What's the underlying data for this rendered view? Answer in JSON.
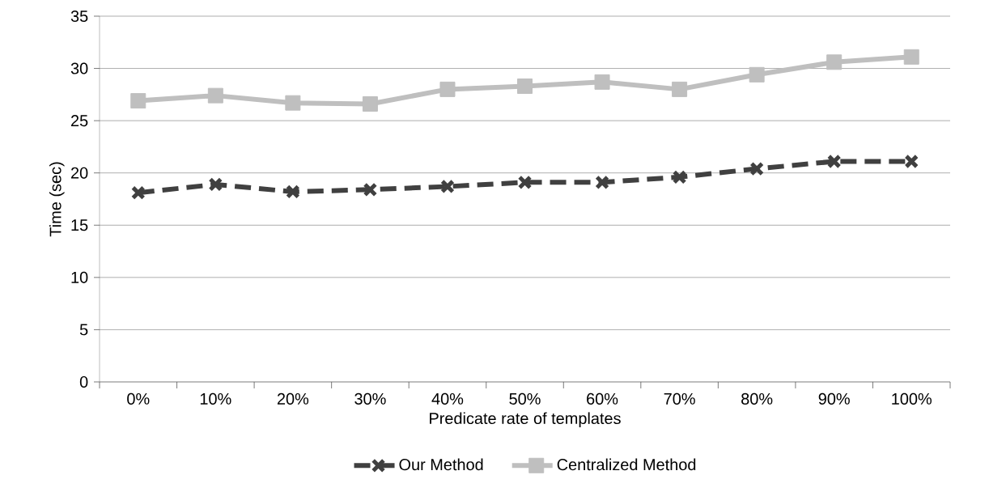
{
  "chart_data": {
    "type": "line",
    "xlabel": "Predicate rate of templates",
    "ylabel": "Time (sec)",
    "categories": [
      "0%",
      "10%",
      "20%",
      "30%",
      "40%",
      "50%",
      "60%",
      "70%",
      "80%",
      "90%",
      "100%"
    ],
    "series": [
      {
        "name": "Our Method",
        "color": "#404040",
        "marker": "cross",
        "line_style": "dashed",
        "values": [
          18.1,
          18.9,
          18.2,
          18.4,
          18.7,
          19.1,
          19.1,
          19.6,
          20.4,
          21.1,
          21.1
        ]
      },
      {
        "name": "Centralized Method",
        "color": "#bfbfbf",
        "marker": "square",
        "line_style": "solid",
        "values": [
          26.9,
          27.4,
          26.7,
          26.6,
          28.0,
          28.3,
          28.7,
          28.0,
          29.4,
          30.6,
          31.1
        ]
      }
    ],
    "ylim": [
      0,
      35
    ],
    "yticks": [
      0,
      5,
      10,
      15,
      20,
      25,
      30,
      35
    ],
    "grid": "y",
    "legend": "bottom"
  }
}
